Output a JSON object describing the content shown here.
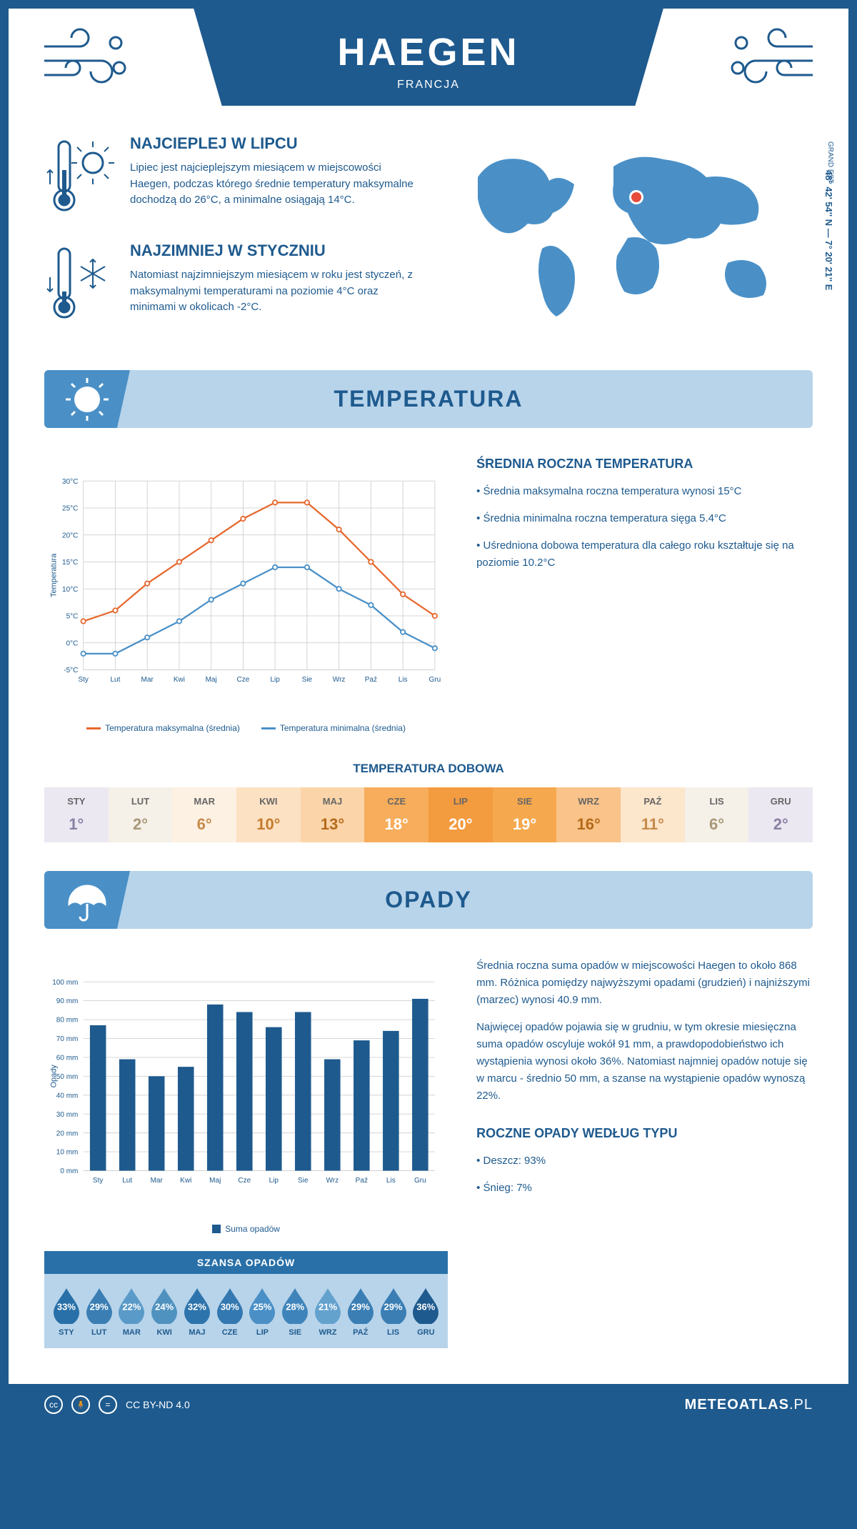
{
  "header": {
    "city": "HAEGEN",
    "country": "FRANCJA"
  },
  "location": {
    "coords": "48° 42' 54'' N — 7° 20' 21'' E",
    "region": "GRAND EST",
    "marker_color": "#e74c3c",
    "map_color": "#4a90c7"
  },
  "intro": {
    "warmest": {
      "title": "NAJCIEPLEJ W LIPCU",
      "text": "Lipiec jest najcieplejszym miesiącem w miejscowości Haegen, podczas którego średnie temperatury maksymalne dochodzą do 26°C, a minimalne osiągają 14°C."
    },
    "coldest": {
      "title": "NAJZIMNIEJ W STYCZNIU",
      "text": "Natomiast najzimniejszym miesiącem w roku jest styczeń, z maksymalnymi temperaturami na poziomie 4°C oraz minimami w okolicach -2°C."
    }
  },
  "sections": {
    "temperature": {
      "title": "TEMPERATURA",
      "chart": {
        "type": "line",
        "months": [
          "Sty",
          "Lut",
          "Mar",
          "Kwi",
          "Maj",
          "Cze",
          "Lip",
          "Sie",
          "Wrz",
          "Paź",
          "Lis",
          "Gru"
        ],
        "ylabel": "Temperatura",
        "ylim": [
          -5,
          30
        ],
        "ytick_step": 5,
        "ytick_suffix": "°C",
        "grid_color": "#d0d0d0",
        "series": [
          {
            "name": "Temperatura maksymalna (średnia)",
            "color": "#e6682e",
            "values": [
              4,
              6,
              11,
              15,
              19,
              23,
              26,
              26,
              21,
              15,
              9,
              5
            ]
          },
          {
            "name": "Temperatura minimalna (średnia)",
            "color": "#4a90c7",
            "values": [
              -2,
              -2,
              1,
              4,
              8,
              11,
              14,
              14,
              10,
              7,
              2,
              -1
            ]
          }
        ]
      },
      "summary": {
        "title": "ŚREDNIA ROCZNA TEMPERATURA",
        "bullets": [
          "Średnia maksymalna roczna temperatura wynosi 15°C",
          "Średnia minimalna roczna temperatura sięga 5.4°C",
          "Uśredniona dobowa temperatura dla całego roku kształtuje się na poziomie 10.2°C"
        ]
      },
      "daily": {
        "title": "TEMPERATURA DOBOWA",
        "months": [
          "STY",
          "LUT",
          "MAR",
          "KWI",
          "MAJ",
          "CZE",
          "LIP",
          "SIE",
          "WRZ",
          "PAŹ",
          "LIS",
          "GRU"
        ],
        "values": [
          "1°",
          "2°",
          "6°",
          "10°",
          "13°",
          "18°",
          "20°",
          "19°",
          "16°",
          "11°",
          "6°",
          "2°"
        ],
        "bg_colors": [
          "#ece8f2",
          "#f5f0e8",
          "#fdf1e3",
          "#fce1c3",
          "#fbd5a9",
          "#f7ad5b",
          "#f39b3f",
          "#f5a84d",
          "#f9c389",
          "#fce6cc",
          "#f5f0e8",
          "#ece8f2"
        ],
        "text_colors": [
          "#8a7fa3",
          "#a89878",
          "#c68a4a",
          "#c67a2a",
          "#b56a1a",
          "#fff",
          "#fff",
          "#fff",
          "#b56a1a",
          "#c68a4a",
          "#a89878",
          "#8a7fa3"
        ]
      }
    },
    "precipitation": {
      "title": "OPADY",
      "chart": {
        "type": "bar",
        "months": [
          "Sty",
          "Lut",
          "Mar",
          "Kwi",
          "Maj",
          "Cze",
          "Lip",
          "Sie",
          "Wrz",
          "Paź",
          "Lis",
          "Gru"
        ],
        "ylabel": "Opady",
        "ylim": [
          0,
          100
        ],
        "ytick_step": 10,
        "ytick_suffix": " mm",
        "bar_color": "#1e5a8e",
        "grid_color": "#d0d0d0",
        "legend": "Suma opadów",
        "values": [
          77,
          59,
          50,
          55,
          88,
          84,
          76,
          84,
          59,
          69,
          74,
          91
        ]
      },
      "summary_paragraphs": [
        "Średnia roczna suma opadów w miejscowości Haegen to około 868 mm. Różnica pomiędzy najwyższymi opadami (grudzień) i najniższymi (marzec) wynosi 40.9 mm.",
        "Najwięcej opadów pojawia się w grudniu, w tym okresie miesięczna suma opadów oscyluje wokół 91 mm, a prawdopodobieństwo ich wystąpienia wynosi około 36%. Natomiast najmniej opadów notuje się w marcu - średnio 50 mm, a szanse na wystąpienie opadów wynoszą 22%."
      ],
      "chance": {
        "title": "SZANSA OPADÓW",
        "months": [
          "STY",
          "LUT",
          "MAR",
          "KWI",
          "MAJ",
          "CZE",
          "LIP",
          "SIE",
          "WRZ",
          "PAŹ",
          "LIS",
          "GRU"
        ],
        "values": [
          "33%",
          "29%",
          "22%",
          "24%",
          "32%",
          "30%",
          "25%",
          "28%",
          "21%",
          "29%",
          "29%",
          "36%"
        ],
        "drop_colors": [
          "#2970a8",
          "#3a7eb4",
          "#5a9ac8",
          "#4f92c0",
          "#2e74ac",
          "#3378b0",
          "#4a90c7",
          "#3e84ba",
          "#64a2ce",
          "#3a7eb4",
          "#3a7eb4",
          "#1e5a8e"
        ]
      },
      "by_type": {
        "title": "ROCZNE OPADY WEDŁUG TYPU",
        "items": [
          "Deszcz: 93%",
          "Śnieg: 7%"
        ]
      }
    }
  },
  "footer": {
    "license": "CC BY-ND 4.0",
    "site": "METEOATLAS",
    "tld": ".PL"
  },
  "colors": {
    "primary": "#1e5a8e",
    "light_blue": "#b8d4ea",
    "mid_blue": "#4a90c7"
  }
}
